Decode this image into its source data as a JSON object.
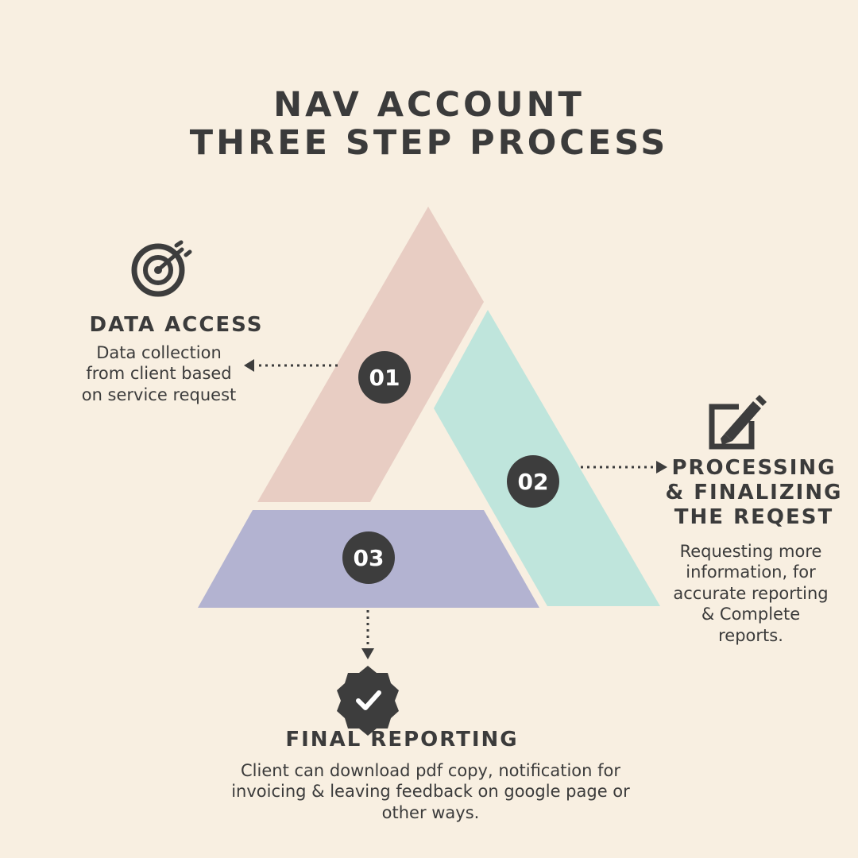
{
  "title": {
    "line1": "NAV ACCOUNT",
    "line2": "THREE STEP PROCESS"
  },
  "steps": [
    {
      "number": "01",
      "heading": "DATA ACCESS",
      "desc_lines": [
        "Data collection",
        "from client based",
        "on service request"
      ],
      "icon": "target-icon",
      "color": "#e8cdc3"
    },
    {
      "number": "02",
      "heading_lines": [
        "PROCESSING",
        "& FINALIZING",
        "THE REQEST"
      ],
      "desc_lines": [
        "Requesting more",
        "information, for",
        "accurate reporting",
        "& Complete",
        "reports."
      ],
      "icon": "edit-icon",
      "color": "#bfe5dc"
    },
    {
      "number": "03",
      "heading": "FINAL REPORTING",
      "desc_lines": [
        "Client can download pdf copy, notification for",
        "invoicing & leaving feedback on google page or",
        "other ways."
      ],
      "icon": "verified-badge-icon",
      "color": "#b3b3d1"
    }
  ],
  "colors": {
    "background": "#f8efe1",
    "text": "#3b3b3b",
    "badge": "#3d3d3d"
  }
}
